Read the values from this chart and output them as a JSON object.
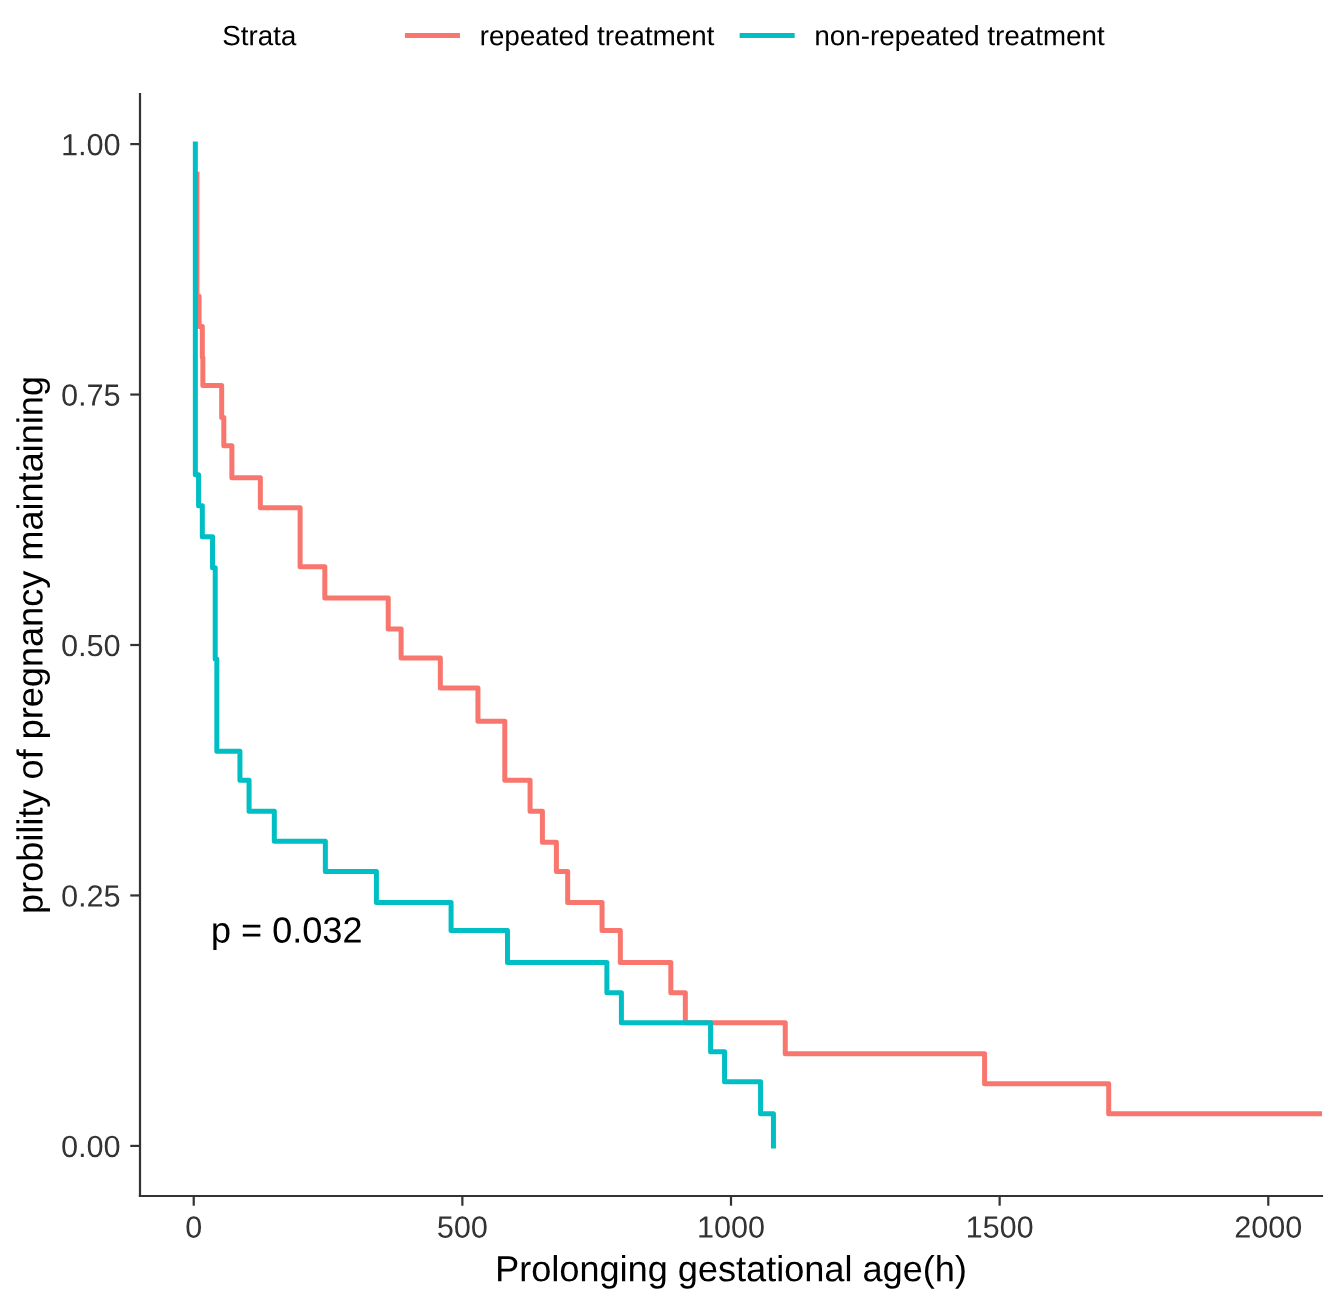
{
  "chart_data": {
    "type": "step",
    "xlabel": "Prolonging gestational age(h)",
    "ylabel": "probility of pregnancy maintaining",
    "legend_title": "Strata",
    "legend": "top",
    "grid": false,
    "xlim": [
      -100,
      2100
    ],
    "xticks": [
      0,
      500,
      1000,
      1500,
      2000
    ],
    "ylim": [
      -0.05,
      1.05
    ],
    "yticks": [
      {
        "value": 0,
        "label": "0.00"
      },
      {
        "value": 0.25,
        "label": "0.25"
      },
      {
        "value": 0.5,
        "label": "0.50"
      },
      {
        "value": 0.75,
        "label": "0.75"
      },
      {
        "value": 1,
        "label": "1.00"
      }
    ],
    "annotations": [
      "p = 0.032"
    ],
    "series": [
      {
        "name": "repeated treatment",
        "color": "#f8766d",
        "x": [
          6,
          6,
          10,
          16,
          17,
          52,
          56,
          71,
          124,
          198,
          244,
          362,
          386,
          459,
          529,
          579,
          626,
          649,
          675,
          696,
          760,
          794,
          888,
          915,
          1101,
          1472,
          1703,
          2100
        ],
        "values": [
          0.97,
          0.848,
          0.818,
          0.787,
          0.759,
          0.727,
          0.699,
          0.667,
          0.637,
          0.578,
          0.547,
          0.516,
          0.487,
          0.457,
          0.424,
          0.365,
          0.334,
          0.303,
          0.274,
          0.243,
          0.215,
          0.183,
          0.153,
          0.123,
          0.092,
          0.062,
          0.032,
          0.032
        ]
      },
      {
        "name": "non-repeated treatment",
        "color": "#00bfc4",
        "x": [
          3,
          3,
          9,
          16,
          35,
          40,
          43,
          86,
          103,
          150,
          245,
          340,
          479,
          584,
          769,
          796,
          962,
          988,
          1055,
          1079
        ],
        "values": [
          1.0,
          0.67,
          0.639,
          0.608,
          0.577,
          0.486,
          0.394,
          0.365,
          0.334,
          0.304,
          0.274,
          0.243,
          0.215,
          0.183,
          0.153,
          0.123,
          0.094,
          0.064,
          0.032,
          0.0
        ]
      }
    ]
  }
}
